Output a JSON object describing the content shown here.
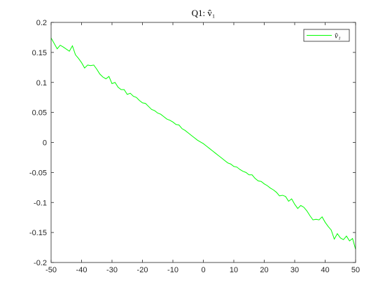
{
  "chart_data": {
    "type": "line",
    "title": "Q1: v̂₁",
    "xlabel": "",
    "ylabel": "",
    "xlim": [
      -50,
      50
    ],
    "ylim": [
      -0.2,
      0.2
    ],
    "x_ticks": [
      -50,
      -40,
      -30,
      -20,
      -10,
      0,
      10,
      20,
      30,
      40,
      50
    ],
    "x_tick_labels": [
      "-50",
      "-40",
      "-30",
      "-20",
      "-10",
      "0",
      "10",
      "20",
      "30",
      "40",
      "50"
    ],
    "y_ticks": [
      0.2,
      0.15,
      0.1,
      0.05,
      0,
      -0.05,
      -0.1,
      -0.15,
      -0.2
    ],
    "y_tick_labels": [
      "0.2",
      "0.15",
      "0.1",
      "0.05",
      "0",
      "-0.05",
      "-0.1",
      "-0.15",
      "-0.2"
    ],
    "grid": false,
    "legend": {
      "position": "top-right",
      "entries": [
        "v̂₁"
      ]
    },
    "series": [
      {
        "name": "v̂₁",
        "color": "#00ff00",
        "x": [
          -50,
          -48,
          -47,
          -46,
          -44,
          -43,
          -42,
          -41,
          -40,
          -39,
          -38,
          -37,
          -36,
          -35,
          -34,
          -33,
          -32,
          -31,
          -30,
          -29,
          -28,
          -27,
          -26,
          -25,
          -24,
          -23,
          -22,
          -21,
          -20,
          -19,
          -18,
          -17,
          -16,
          -15,
          -14,
          -13,
          -12,
          -11,
          -10,
          -9,
          -8,
          -7,
          -6,
          -5,
          -4,
          -3,
          -2,
          -1,
          0,
          1,
          2,
          3,
          4,
          5,
          6,
          7,
          8,
          9,
          10,
          11,
          12,
          13,
          14,
          15,
          16,
          17,
          18,
          19,
          20,
          21,
          22,
          23,
          24,
          25,
          26,
          27,
          28,
          29,
          30,
          31,
          32,
          33,
          34,
          35,
          36,
          37,
          38,
          39,
          40,
          41,
          42,
          43,
          44,
          45,
          46,
          47,
          48,
          49,
          50
        ],
        "y": [
          0.174,
          0.156,
          0.162,
          0.159,
          0.152,
          0.161,
          0.146,
          0.14,
          0.133,
          0.124,
          0.129,
          0.128,
          0.129,
          0.122,
          0.114,
          0.109,
          0.106,
          0.11,
          0.098,
          0.1,
          0.092,
          0.088,
          0.088,
          0.08,
          0.082,
          0.077,
          0.075,
          0.07,
          0.066,
          0.065,
          0.06,
          0.055,
          0.053,
          0.049,
          0.047,
          0.043,
          0.039,
          0.037,
          0.034,
          0.03,
          0.029,
          0.023,
          0.02,
          0.016,
          0.012,
          0.008,
          0.004,
          0.001,
          -0.002,
          -0.006,
          -0.01,
          -0.014,
          -0.018,
          -0.022,
          -0.026,
          -0.03,
          -0.034,
          -0.036,
          -0.04,
          -0.041,
          -0.045,
          -0.048,
          -0.05,
          -0.054,
          -0.054,
          -0.06,
          -0.064,
          -0.065,
          -0.069,
          -0.072,
          -0.076,
          -0.079,
          -0.083,
          -0.089,
          -0.088,
          -0.09,
          -0.098,
          -0.094,
          -0.103,
          -0.11,
          -0.105,
          -0.108,
          -0.114,
          -0.122,
          -0.129,
          -0.128,
          -0.129,
          -0.124,
          -0.133,
          -0.14,
          -0.146,
          -0.161,
          -0.152,
          -0.159,
          -0.162,
          -0.156,
          -0.164,
          -0.16,
          -0.178
        ]
      }
    ]
  }
}
